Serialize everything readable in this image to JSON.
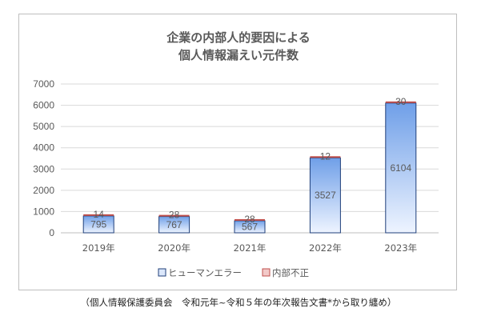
{
  "chart_data": {
    "type": "bar",
    "stacked": true,
    "title_lines": [
      "企業の内部人的要因による",
      "個人情報漏えい元件数"
    ],
    "categories": [
      "2019年",
      "2020年",
      "2021年",
      "2022年",
      "2023年"
    ],
    "series": [
      {
        "name": "ヒューマンエラー",
        "values": [
          795,
          767,
          567,
          3527,
          6104
        ],
        "color": "#6f9fe8",
        "border": "#1f3f7a"
      },
      {
        "name": "内部不正",
        "values": [
          14,
          28,
          28,
          12,
          30
        ],
        "color": "#c0504d",
        "border": "#c0504d"
      }
    ],
    "series_labels": [
      [
        "795",
        "767",
        "567",
        "3527",
        "6104"
      ],
      [
        "14",
        "28",
        "28",
        "12",
        "30"
      ]
    ],
    "ylim": [
      0,
      7000
    ],
    "yticks": [
      0,
      1000,
      2000,
      3000,
      4000,
      5000,
      6000,
      7000
    ],
    "ytick_labels": [
      "0",
      "1000",
      "2000",
      "3000",
      "4000",
      "5000",
      "6000",
      "7000"
    ],
    "grid": true,
    "legend_position": "bottom",
    "xlabel": "",
    "ylabel": ""
  },
  "source_note": "（個人情報保護委員会　令和元年~令和５年の年次報告文書*から取り纏め）"
}
